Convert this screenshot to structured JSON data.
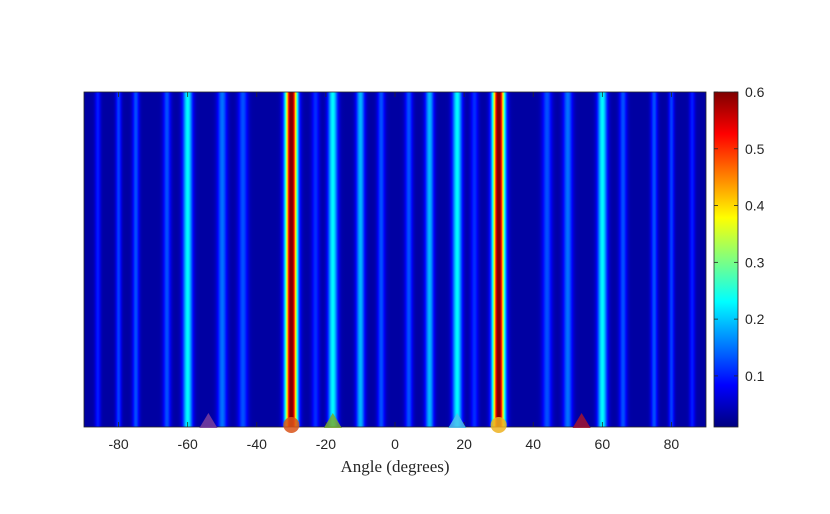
{
  "chart_data": {
    "type": "heatmap",
    "xlabel": "Angle (degrees)",
    "xlim": [
      -90,
      90
    ],
    "x_ticks": [
      -80,
      -60,
      -40,
      -20,
      0,
      20,
      40,
      60,
      80
    ],
    "colorbar": {
      "colormap": "jet",
      "range": [
        0.01,
        0.6
      ],
      "ticks": [
        0.1,
        0.2,
        0.3,
        0.4,
        0.5,
        0.6
      ]
    },
    "profile": {
      "description_values": "intensity vs angle, constant over the vertical axis",
      "base": 0.03,
      "peaks": [
        {
          "angle": -86,
          "value": 0.07,
          "width": 0.6
        },
        {
          "angle": -80,
          "value": 0.09,
          "width": 0.6
        },
        {
          "angle": -75,
          "value": 0.1,
          "width": 0.7
        },
        {
          "angle": -66,
          "value": 0.1,
          "width": 0.8
        },
        {
          "angle": -60,
          "value": 0.2,
          "width": 1.0
        },
        {
          "angle": -50,
          "value": 0.12,
          "width": 1.0
        },
        {
          "angle": -44,
          "value": 0.1,
          "width": 1.0
        },
        {
          "angle": -30,
          "value": 0.6,
          "width": 1.2
        },
        {
          "angle": -23,
          "value": 0.08,
          "width": 0.8
        },
        {
          "angle": -18,
          "value": 0.2,
          "width": 1.0
        },
        {
          "angle": -10,
          "value": 0.16,
          "width": 0.9
        },
        {
          "angle": -4,
          "value": 0.1,
          "width": 0.8
        },
        {
          "angle": 4,
          "value": 0.1,
          "width": 0.8
        },
        {
          "angle": 10,
          "value": 0.16,
          "width": 0.9
        },
        {
          "angle": 18,
          "value": 0.2,
          "width": 1.0
        },
        {
          "angle": 23,
          "value": 0.08,
          "width": 0.8
        },
        {
          "angle": 30,
          "value": 0.6,
          "width": 1.2
        },
        {
          "angle": 44,
          "value": 0.1,
          "width": 1.0
        },
        {
          "angle": 50,
          "value": 0.12,
          "width": 1.0
        },
        {
          "angle": 60,
          "value": 0.2,
          "width": 1.0
        },
        {
          "angle": 66,
          "value": 0.1,
          "width": 0.8
        },
        {
          "angle": 75,
          "value": 0.1,
          "width": 0.7
        },
        {
          "angle": 80,
          "value": 0.09,
          "width": 0.6
        },
        {
          "angle": 86,
          "value": 0.07,
          "width": 0.6
        }
      ]
    },
    "markers": [
      {
        "angle": -54,
        "shape": "triangle",
        "color": "#7b3f9e"
      },
      {
        "angle": -30,
        "shape": "circle",
        "color": "#d95319"
      },
      {
        "angle": -18,
        "shape": "triangle",
        "color": "#77ac30"
      },
      {
        "angle": 18,
        "shape": "triangle",
        "color": "#4dbeee"
      },
      {
        "angle": 30,
        "shape": "circle",
        "color": "#edb120"
      },
      {
        "angle": 54,
        "shape": "triangle",
        "color": "#a2142f"
      }
    ]
  }
}
